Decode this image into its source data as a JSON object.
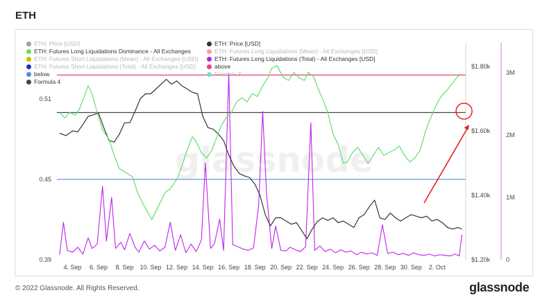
{
  "page_title": "ETH",
  "footer": {
    "copyright": "© 2022 Glassnode. All Rights Reserved.",
    "brand": "glassnode"
  },
  "watermark": "glassnode",
  "legend": [
    {
      "label": "ETH: Price [USD]",
      "color": "#9e9e9e",
      "faded": true
    },
    {
      "label": "ETH: Futures Long Liquidations Dominance - All Exchanges",
      "color": "#5fe06a",
      "faded": false
    },
    {
      "label": "ETH: Futures Short Liquidations (Mean) - All Exchanges [USD]",
      "color": "#c2c200",
      "faded": true
    },
    {
      "label": "ETH: Futures Short Liquidations (Total) - All Exchanges [USD]",
      "color": "#1830c8",
      "faded": true
    },
    {
      "label": "below",
      "color": "#4a90e2",
      "faded": false
    },
    {
      "label": "Formula 4",
      "color": "#444444",
      "faded": false
    },
    {
      "label": "ETH: Price [USD]",
      "color": "#333333",
      "faded": false
    },
    {
      "label": "ETH: Futures Long Liquidations (Mean) - All Exchanges [USD]",
      "color": "#f2a0a8",
      "faded": true
    },
    {
      "label": "ETH: Futures Long Liquidations (Total) - All Exchanges [USD]",
      "color": "#c020e8",
      "faded": false
    },
    {
      "label": "above",
      "color": "#e8407a",
      "faded": false
    },
    {
      "label": "Formula 3",
      "color": "#80d8d8",
      "faded": true
    }
  ],
  "chart_data": {
    "type": "line",
    "x_ticks": [
      "4. Sep",
      "6. Sep",
      "8. Sep",
      "10. Sep",
      "12. Sep",
      "14. Sep",
      "16. Sep",
      "18. Sep",
      "20. Sep",
      "22. Sep",
      "24. Sep",
      "26. Sep",
      "28. Sep",
      "30. Sep",
      "2. Oct"
    ],
    "x_range_days": [
      2.8,
      34.2
    ],
    "left_axis": {
      "ticks": [
        "0.39",
        "0.45",
        "0.51"
      ],
      "values": [
        0.39,
        0.45,
        0.51
      ],
      "range": [
        0.39,
        0.552
      ]
    },
    "price_axis": {
      "ticks": [
        "$1.20k",
        "$1.40k",
        "$1.60k",
        "$1.80k"
      ],
      "values": [
        1200,
        1400,
        1600,
        1800
      ],
      "range": [
        1200,
        1873
      ]
    },
    "right_axis": {
      "ticks": [
        "0",
        "1M",
        "2M",
        "3M"
      ],
      "values": [
        0,
        1000000,
        2000000,
        3000000
      ],
      "range": [
        0,
        3480000
      ]
    },
    "reference_lines": [
      {
        "name": "above",
        "value": 0.528,
        "color": "#e8407a"
      },
      {
        "name": "Formula 4",
        "value": 0.5,
        "color": "#444444"
      },
      {
        "name": "below",
        "value": 0.45,
        "color": "#4a90e2"
      }
    ],
    "series": [
      {
        "name": "ETH: Futures Long Liquidations Dominance - All Exchanges",
        "axis": "left",
        "color": "#5fe06a",
        "points": [
          [
            3.0,
            0.5
          ],
          [
            3.4,
            0.496
          ],
          [
            3.8,
            0.5
          ],
          [
            4.2,
            0.498
          ],
          [
            4.5,
            0.502
          ],
          [
            4.9,
            0.512
          ],
          [
            5.2,
            0.52
          ],
          [
            5.5,
            0.514
          ],
          [
            5.9,
            0.5
          ],
          [
            6.3,
            0.487
          ],
          [
            6.8,
            0.48
          ],
          [
            7.2,
            0.468
          ],
          [
            7.6,
            0.458
          ],
          [
            8.1,
            0.455
          ],
          [
            8.6,
            0.452
          ],
          [
            9.0,
            0.44
          ],
          [
            9.4,
            0.432
          ],
          [
            9.8,
            0.425
          ],
          [
            10.1,
            0.42
          ],
          [
            10.6,
            0.43
          ],
          [
            11.1,
            0.44
          ],
          [
            11.5,
            0.443
          ],
          [
            12.0,
            0.45
          ],
          [
            12.4,
            0.46
          ],
          [
            12.8,
            0.472
          ],
          [
            13.2,
            0.482
          ],
          [
            13.5,
            0.478
          ],
          [
            13.9,
            0.47
          ],
          [
            14.3,
            0.466
          ],
          [
            14.7,
            0.472
          ],
          [
            15.1,
            0.482
          ],
          [
            15.4,
            0.49
          ],
          [
            15.8,
            0.496
          ],
          [
            16.2,
            0.5
          ],
          [
            16.6,
            0.508
          ],
          [
            17.0,
            0.511
          ],
          [
            17.4,
            0.508
          ],
          [
            17.8,
            0.514
          ],
          [
            18.2,
            0.512
          ],
          [
            18.6,
            0.52
          ],
          [
            19.0,
            0.526
          ],
          [
            19.3,
            0.533
          ],
          [
            19.7,
            0.535
          ],
          [
            20.2,
            0.526
          ],
          [
            20.6,
            0.524
          ],
          [
            21.0,
            0.53
          ],
          [
            21.4,
            0.526
          ],
          [
            21.8,
            0.524
          ],
          [
            22.1,
            0.53
          ],
          [
            22.5,
            0.527
          ],
          [
            22.9,
            0.517
          ],
          [
            23.3,
            0.508
          ],
          [
            23.6,
            0.5
          ],
          [
            24.0,
            0.484
          ],
          [
            24.4,
            0.476
          ],
          [
            24.8,
            0.462
          ],
          [
            25.1,
            0.463
          ],
          [
            25.5,
            0.47
          ],
          [
            25.9,
            0.474
          ],
          [
            26.3,
            0.468
          ],
          [
            26.7,
            0.462
          ],
          [
            27.1,
            0.468
          ],
          [
            27.5,
            0.474
          ],
          [
            27.9,
            0.468
          ],
          [
            28.3,
            0.47
          ],
          [
            28.7,
            0.472
          ],
          [
            29.1,
            0.475
          ],
          [
            29.5,
            0.468
          ],
          [
            29.9,
            0.463
          ],
          [
            30.3,
            0.466
          ],
          [
            30.7,
            0.472
          ],
          [
            31.1,
            0.486
          ],
          [
            31.5,
            0.496
          ],
          [
            31.9,
            0.505
          ],
          [
            32.3,
            0.512
          ],
          [
            32.7,
            0.516
          ],
          [
            33.1,
            0.521
          ],
          [
            33.5,
            0.526
          ],
          [
            33.8,
            0.529
          ]
        ]
      },
      {
        "name": "ETH: Price [USD]",
        "axis": "price",
        "color": "#333333",
        "points": [
          [
            3.0,
            1593
          ],
          [
            3.5,
            1585
          ],
          [
            4.0,
            1600
          ],
          [
            4.4,
            1597
          ],
          [
            4.8,
            1620
          ],
          [
            5.2,
            1645
          ],
          [
            5.6,
            1650
          ],
          [
            6.0,
            1655
          ],
          [
            6.4,
            1610
          ],
          [
            6.8,
            1570
          ],
          [
            7.2,
            1565
          ],
          [
            7.6,
            1590
          ],
          [
            8.0,
            1625
          ],
          [
            8.4,
            1625
          ],
          [
            8.8,
            1660
          ],
          [
            9.2,
            1700
          ],
          [
            9.6,
            1715
          ],
          [
            10.0,
            1715
          ],
          [
            10.4,
            1730
          ],
          [
            10.8,
            1745
          ],
          [
            11.2,
            1760
          ],
          [
            11.6,
            1745
          ],
          [
            12.0,
            1755
          ],
          [
            12.4,
            1740
          ],
          [
            12.8,
            1730
          ],
          [
            13.2,
            1720
          ],
          [
            13.6,
            1715
          ],
          [
            14.0,
            1645
          ],
          [
            14.4,
            1610
          ],
          [
            14.8,
            1605
          ],
          [
            15.2,
            1590
          ],
          [
            15.6,
            1570
          ],
          [
            16.0,
            1525
          ],
          [
            16.4,
            1490
          ],
          [
            16.8,
            1468
          ],
          [
            17.2,
            1460
          ],
          [
            17.6,
            1455
          ],
          [
            18.0,
            1435
          ],
          [
            18.4,
            1400
          ],
          [
            18.8,
            1340
          ],
          [
            19.2,
            1305
          ],
          [
            19.6,
            1330
          ],
          [
            20.0,
            1330
          ],
          [
            20.4,
            1320
          ],
          [
            20.8,
            1310
          ],
          [
            21.2,
            1315
          ],
          [
            21.6,
            1290
          ],
          [
            22.0,
            1265
          ],
          [
            22.4,
            1295
          ],
          [
            22.8,
            1318
          ],
          [
            23.2,
            1330
          ],
          [
            23.6,
            1322
          ],
          [
            24.0,
            1330
          ],
          [
            24.4,
            1315
          ],
          [
            24.8,
            1320
          ],
          [
            25.2,
            1310
          ],
          [
            25.6,
            1300
          ],
          [
            26.0,
            1330
          ],
          [
            26.4,
            1340
          ],
          [
            26.8,
            1365
          ],
          [
            27.2,
            1385
          ],
          [
            27.6,
            1330
          ],
          [
            28.0,
            1325
          ],
          [
            28.4,
            1345
          ],
          [
            28.8,
            1330
          ],
          [
            29.2,
            1320
          ],
          [
            29.6,
            1330
          ],
          [
            30.0,
            1340
          ],
          [
            30.4,
            1335
          ],
          [
            30.8,
            1330
          ],
          [
            31.2,
            1335
          ],
          [
            31.6,
            1320
          ],
          [
            32.0,
            1325
          ],
          [
            32.4,
            1315
          ],
          [
            32.8,
            1300
          ],
          [
            33.2,
            1295
          ],
          [
            33.6,
            1300
          ],
          [
            33.9,
            1295
          ]
        ]
      },
      {
        "name": "ETH: Futures Long Liquidations (Total) - All Exchanges [USD]",
        "axis": "right",
        "color": "#c020e8",
        "points": [
          [
            3.0,
            80000
          ],
          [
            3.3,
            600000
          ],
          [
            3.6,
            150000
          ],
          [
            4.0,
            120000
          ],
          [
            4.4,
            200000
          ],
          [
            4.8,
            90000
          ],
          [
            5.2,
            350000
          ],
          [
            5.5,
            180000
          ],
          [
            5.9,
            250000
          ],
          [
            6.3,
            1180000
          ],
          [
            6.6,
            300000
          ],
          [
            7.0,
            1000000
          ],
          [
            7.3,
            180000
          ],
          [
            7.7,
            280000
          ],
          [
            8.0,
            160000
          ],
          [
            8.4,
            420000
          ],
          [
            8.8,
            200000
          ],
          [
            9.1,
            120000
          ],
          [
            9.5,
            300000
          ],
          [
            9.9,
            170000
          ],
          [
            10.3,
            230000
          ],
          [
            10.7,
            140000
          ],
          [
            11.1,
            200000
          ],
          [
            11.5,
            600000
          ],
          [
            11.9,
            150000
          ],
          [
            12.3,
            400000
          ],
          [
            12.7,
            110000
          ],
          [
            13.1,
            250000
          ],
          [
            13.5,
            130000
          ],
          [
            13.9,
            320000
          ],
          [
            14.2,
            1550000
          ],
          [
            14.6,
            180000
          ],
          [
            14.9,
            260000
          ],
          [
            15.3,
            650000
          ],
          [
            15.6,
            150000
          ],
          [
            16.0,
            3000000
          ],
          [
            16.3,
            240000
          ],
          [
            16.7,
            210000
          ],
          [
            17.1,
            170000
          ],
          [
            17.5,
            150000
          ],
          [
            17.9,
            190000
          ],
          [
            18.3,
            880000
          ],
          [
            18.6,
            2380000
          ],
          [
            18.9,
            1050000
          ],
          [
            19.3,
            180000
          ],
          [
            19.6,
            540000
          ],
          [
            20.0,
            150000
          ],
          [
            20.4,
            140000
          ],
          [
            20.7,
            200000
          ],
          [
            21.1,
            160000
          ],
          [
            21.5,
            130000
          ],
          [
            21.9,
            210000
          ],
          [
            22.3,
            2200000
          ],
          [
            22.6,
            150000
          ],
          [
            23.0,
            220000
          ],
          [
            23.4,
            130000
          ],
          [
            23.8,
            170000
          ],
          [
            24.2,
            110000
          ],
          [
            24.6,
            160000
          ],
          [
            25.0,
            120000
          ],
          [
            25.4,
            140000
          ],
          [
            25.8,
            80000
          ],
          [
            26.2,
            120000
          ],
          [
            26.6,
            90000
          ],
          [
            27.0,
            110000
          ],
          [
            27.4,
            70000
          ],
          [
            27.8,
            560000
          ],
          [
            28.2,
            100000
          ],
          [
            28.6,
            120000
          ],
          [
            29.0,
            80000
          ],
          [
            29.4,
            100000
          ],
          [
            29.8,
            70000
          ],
          [
            30.2,
            110000
          ],
          [
            30.6,
            80000
          ],
          [
            31.0,
            70000
          ],
          [
            31.4,
            90000
          ],
          [
            31.8,
            60000
          ],
          [
            32.2,
            80000
          ],
          [
            32.6,
            70000
          ],
          [
            33.0,
            60000
          ],
          [
            33.4,
            90000
          ],
          [
            33.7,
            60000
          ],
          [
            33.9,
            400000
          ]
        ]
      }
    ]
  }
}
